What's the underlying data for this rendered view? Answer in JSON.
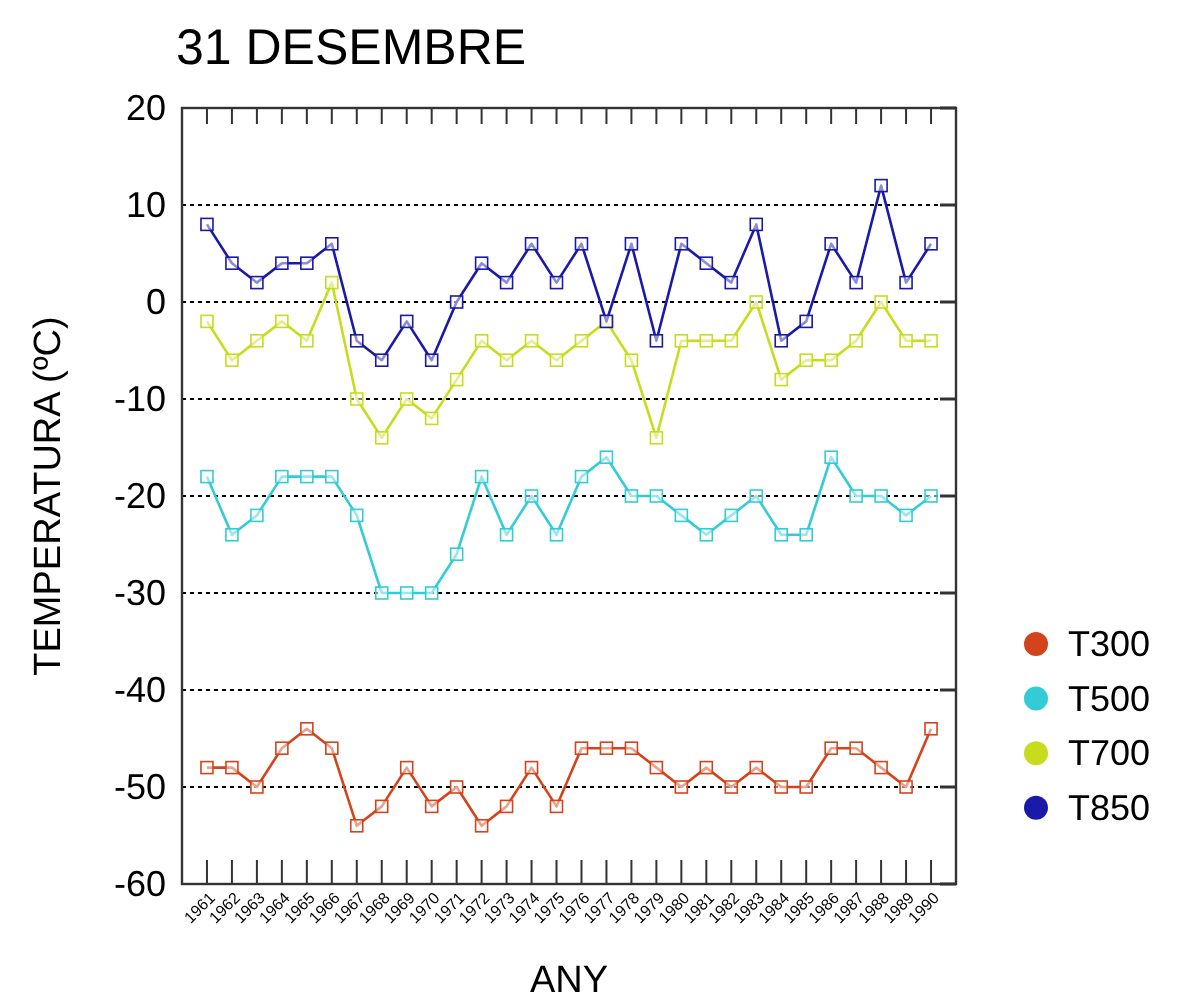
{
  "chart_data": {
    "type": "line",
    "title": "31 DESEMBRE",
    "xlabel": "ANY",
    "ylabel": "TEMPERATURA (ºC)",
    "categories": [
      "1961",
      "1962",
      "1963",
      "1964",
      "1965",
      "1966",
      "1967",
      "1968",
      "1969",
      "1970",
      "1971",
      "1972",
      "1973",
      "1974",
      "1975",
      "1976",
      "1977",
      "1978",
      "1979",
      "1980",
      "1981",
      "1982",
      "1983",
      "1984",
      "1985",
      "1986",
      "1987",
      "1988",
      "1989",
      "1990"
    ],
    "series": [
      {
        "name": "T300",
        "color": "#d4441c",
        "values": [
          -48,
          -48,
          -50,
          -46,
          -44,
          -46,
          -54,
          -52,
          -48,
          -52,
          -50,
          -54,
          -52,
          -48,
          -52,
          -46,
          -46,
          -46,
          -48,
          -50,
          -48,
          -50,
          -48,
          -50,
          -50,
          -46,
          -46,
          -48,
          -50,
          -44
        ]
      },
      {
        "name": "T500",
        "color": "#33ccd6",
        "values": [
          -18,
          -24,
          -22,
          -18,
          -18,
          -18,
          -22,
          -30,
          -30,
          -30,
          -26,
          -18,
          -24,
          -20,
          -24,
          -18,
          -16,
          -20,
          -20,
          -22,
          -24,
          -22,
          -20,
          -24,
          -24,
          -16,
          -20,
          -20,
          -22,
          -20
        ]
      },
      {
        "name": "T700",
        "color": "#c8dc1e",
        "values": [
          -2,
          -6,
          -4,
          -2,
          -4,
          2,
          -10,
          -14,
          -10,
          -12,
          -8,
          -4,
          -6,
          -4,
          -6,
          -4,
          -2,
          -6,
          -14,
          -4,
          -4,
          -4,
          0,
          -8,
          -6,
          -6,
          -4,
          0,
          -4,
          -4
        ]
      },
      {
        "name": "T850",
        "color": "#1a1aa8",
        "values": [
          8,
          4,
          2,
          4,
          4,
          6,
          -4,
          -6,
          -2,
          -6,
          0,
          4,
          2,
          6,
          2,
          6,
          -2,
          6,
          -4,
          6,
          4,
          2,
          8,
          -4,
          -2,
          6,
          2,
          12,
          2,
          6
        ]
      }
    ],
    "ylim": [
      -60,
      20
    ],
    "yticks": [
      -60,
      -50,
      -40,
      -30,
      -20,
      -10,
      0,
      10,
      20
    ],
    "grid": "y",
    "legend": "right",
    "marker": "square",
    "line_style": "solid"
  }
}
